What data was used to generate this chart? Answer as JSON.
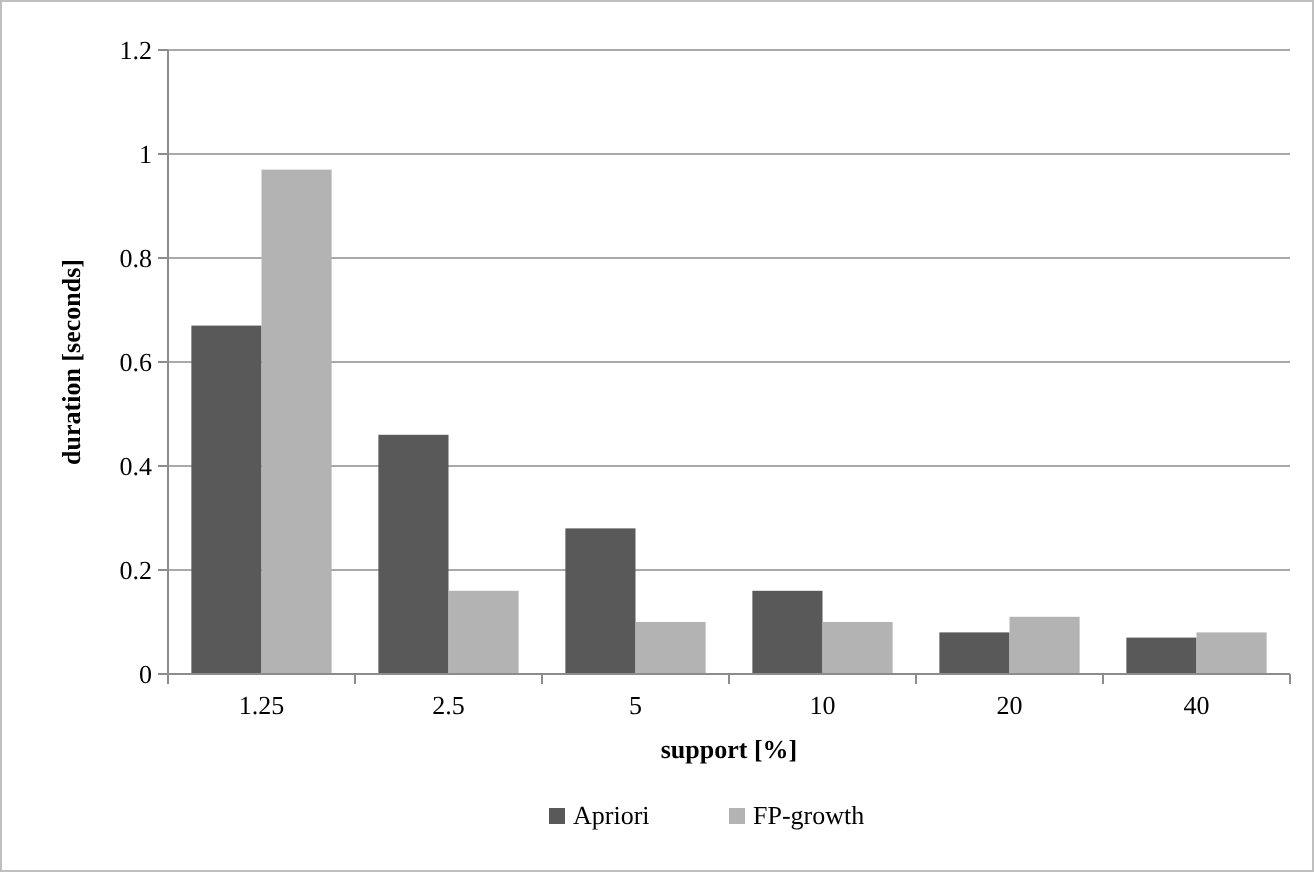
{
  "chart_data": {
    "type": "bar",
    "xlabel": "support [%]",
    "ylabel": "duration [seconds]",
    "categories": [
      "1.25",
      "2.5",
      "5",
      "10",
      "20",
      "40"
    ],
    "series": [
      {
        "name": "Apriori",
        "color": "#595959",
        "values": [
          0.67,
          0.46,
          0.28,
          0.16,
          0.08,
          0.07
        ]
      },
      {
        "name": "FP-growth",
        "color": "#b3b3b3",
        "values": [
          0.97,
          0.16,
          0.1,
          0.1,
          0.11,
          0.08
        ]
      }
    ],
    "ylim": [
      0,
      1.2
    ],
    "yticks": [
      0,
      0.2,
      0.4,
      0.6,
      0.8,
      1,
      1.2
    ],
    "grid": "y",
    "legend": "bottom"
  }
}
